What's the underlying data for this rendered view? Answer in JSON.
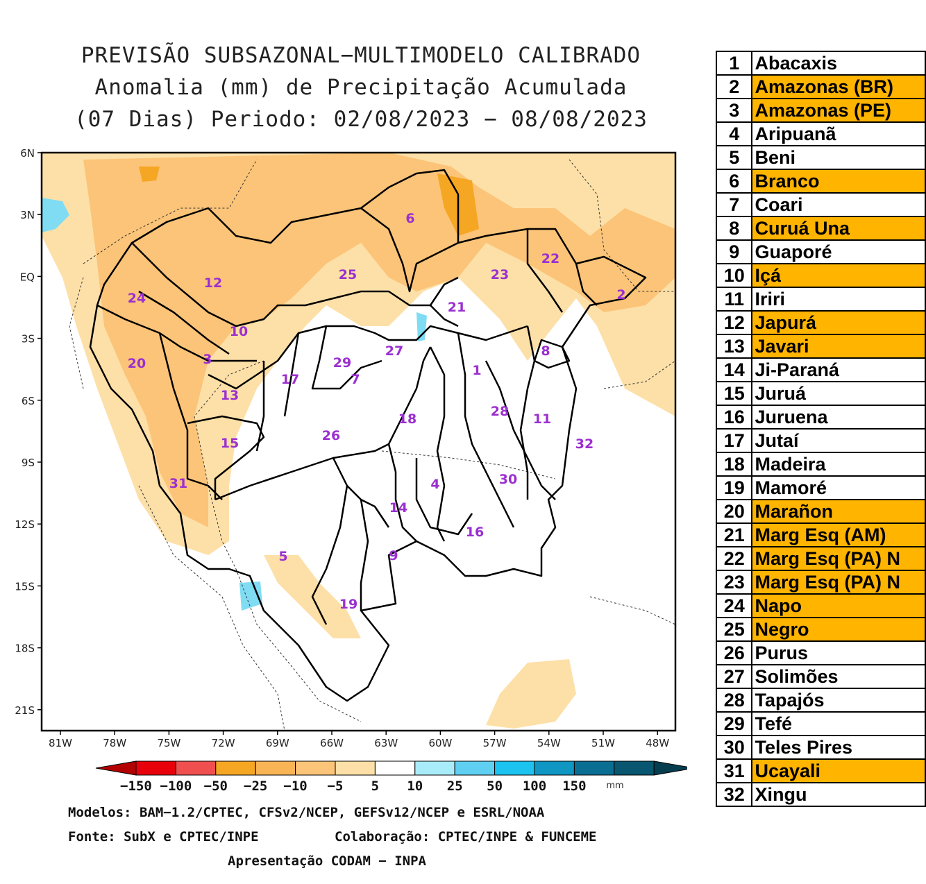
{
  "title": {
    "line1": "PREVISÃO SUBSAZONAL−MULTIMODELO CALIBRADO",
    "line2": "Anomalia (mm) de Precipitação Acumulada",
    "line3": "(07 Dias) Periodo: 02/08/2023 − 08/08/2023"
  },
  "map": {
    "lat_labels": [
      "6N",
      "3N",
      "EQ",
      "3S",
      "6S",
      "9S",
      "12S",
      "15S",
      "18S",
      "21S"
    ],
    "lon_labels": [
      "81W",
      "78W",
      "75W",
      "72W",
      "69W",
      "66W",
      "63W",
      "60W",
      "57W",
      "54W",
      "51W",
      "48W"
    ],
    "basin_numbers": [
      "1",
      "2",
      "3",
      "4",
      "5",
      "6",
      "7",
      "8",
      "9",
      "10",
      "11",
      "12",
      "13",
      "14",
      "15",
      "16",
      "17",
      "18",
      "19",
      "20",
      "21",
      "22",
      "23",
      "24",
      "25",
      "26",
      "27",
      "28",
      "29",
      "30",
      "31",
      "32"
    ],
    "colors": {
      "dry_1": "#fde0a8",
      "dry_2": "#fbc478",
      "dry_3": "#f5a623",
      "wet": "#7fdcf3",
      "label": "#9b2fd0",
      "border": "#000000"
    }
  },
  "colorbar": {
    "labels": [
      "−150",
      "−100",
      "−50",
      "−25",
      "−10",
      "−5",
      "5",
      "10",
      "25",
      "50",
      "100",
      "150"
    ],
    "unit": "mm",
    "colors": [
      "#b30000",
      "#e8000b",
      "#f04f4f",
      "#f5a623",
      "#f8b455",
      "#fbc478",
      "#fde0a8",
      "#ffffff",
      "#a9ecf9",
      "#5fd0f2",
      "#1cc2f0",
      "#0f96c2",
      "#0a6e93",
      "#08566f",
      "#063d4f"
    ]
  },
  "credits": {
    "models": "Modelos: BAM−1.2/CPTEC, CFSv2/NCEP, GEFSv12/NCEP e ESRL/NOAA",
    "source": "Fonte: SubX e CPTEC/INPE",
    "collab": "Colaboração: CPTEC/INPE & FUNCEME",
    "presentation": "Apresentação CODAM − INPA"
  },
  "basins": [
    {
      "num": "1",
      "name": "Abacaxis",
      "highlight": false
    },
    {
      "num": "2",
      "name": "Amazonas (BR)",
      "highlight": true
    },
    {
      "num": "3",
      "name": "Amazonas (PE)",
      "highlight": true
    },
    {
      "num": "4",
      "name": "Aripuanã",
      "highlight": false
    },
    {
      "num": "5",
      "name": "Beni",
      "highlight": false
    },
    {
      "num": "6",
      "name": "Branco",
      "highlight": true
    },
    {
      "num": "7",
      "name": "Coari",
      "highlight": false
    },
    {
      "num": "8",
      "name": "Curuá Una",
      "highlight": true
    },
    {
      "num": "9",
      "name": "Guaporé",
      "highlight": false
    },
    {
      "num": "10",
      "name": "Içá",
      "highlight": true
    },
    {
      "num": "11",
      "name": "Iriri",
      "highlight": false
    },
    {
      "num": "12",
      "name": "Japurá",
      "highlight": true
    },
    {
      "num": "13",
      "name": "Javari",
      "highlight": true
    },
    {
      "num": "14",
      "name": "Ji-Paraná",
      "highlight": false
    },
    {
      "num": "15",
      "name": "Juruá",
      "highlight": false
    },
    {
      "num": "16",
      "name": "Juruena",
      "highlight": false
    },
    {
      "num": "17",
      "name": "Jutaí",
      "highlight": false
    },
    {
      "num": "18",
      "name": "Madeira",
      "highlight": false
    },
    {
      "num": "19",
      "name": "Mamoré",
      "highlight": false
    },
    {
      "num": "20",
      "name": "Marañon",
      "highlight": true
    },
    {
      "num": "21",
      "name": "Marg Esq (AM)",
      "highlight": true
    },
    {
      "num": "22",
      "name": "Marg Esq (PA) N",
      "highlight": true
    },
    {
      "num": "23",
      "name": "Marg Esq (PA) N",
      "highlight": true
    },
    {
      "num": "24",
      "name": "Napo",
      "highlight": true
    },
    {
      "num": "25",
      "name": "Negro",
      "highlight": true
    },
    {
      "num": "26",
      "name": "Purus",
      "highlight": false
    },
    {
      "num": "27",
      "name": "Solimões",
      "highlight": false
    },
    {
      "num": "28",
      "name": "Tapajós",
      "highlight": false
    },
    {
      "num": "29",
      "name": "Tefé",
      "highlight": false
    },
    {
      "num": "30",
      "name": "Teles Pires",
      "highlight": false
    },
    {
      "num": "31",
      "name": "Ucayali",
      "highlight": true
    },
    {
      "num": "32",
      "name": "Xingu",
      "highlight": false
    }
  ]
}
